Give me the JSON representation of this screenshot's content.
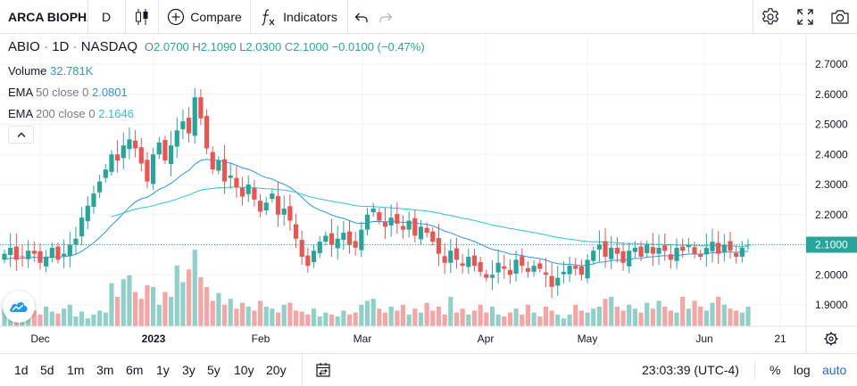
{
  "toolbar": {
    "symbol": "ARCA BIOPHARMA",
    "interval": "D",
    "compare_label": "Compare",
    "indicators_label": "Indicators"
  },
  "legend": {
    "symbol": "ABIO",
    "interval": "1D",
    "exchange": "NASDAQ",
    "open_key": "O",
    "open": "2.0700",
    "high_key": "H",
    "high": "2.1090",
    "low_key": "L",
    "low": "2.0300",
    "close_key": "C",
    "close": "2.1000",
    "change": "−0.0100 (−0.47%)"
  },
  "indicators": [
    {
      "name": "Volume",
      "params": "",
      "value": "32.781K",
      "color": "#26a69a"
    },
    {
      "name": "EMA",
      "params": "50 close 0",
      "value": "2.0801",
      "color": "#2196f3"
    },
    {
      "name": "EMA",
      "params": "200 close 0",
      "value": "2.1646",
      "color": "#26c6da"
    }
  ],
  "price_axis": {
    "ticks": [
      "2.7000",
      "2.6000",
      "2.5000",
      "2.4000",
      "2.3000",
      "2.2000",
      "2.1000",
      "2.0000",
      "1.9000"
    ],
    "last_price_label": "2.1000"
  },
  "time_axis": {
    "labels": [
      "Dec",
      "2023",
      "Feb",
      "Mar",
      "Apr",
      "May",
      "Jun",
      "21"
    ]
  },
  "colors": {
    "up": "#26a69a",
    "down": "#ef5350",
    "up_volume": "#8fd1c8",
    "down_volume": "#f5a6a4",
    "ema50": "#2196f3",
    "ema200": "#26c6da",
    "accent": "#2962ff"
  },
  "chart_data": {
    "type": "candlestick",
    "symbol": "ABIO",
    "interval": "1D",
    "ylim": [
      1.86,
      2.74
    ],
    "x_labels": [
      "Dec",
      "2023",
      "Feb",
      "Mar",
      "Apr",
      "May",
      "Jun",
      "21"
    ],
    "last_bar": {
      "open": 2.07,
      "high": 2.109,
      "low": 2.03,
      "close": 2.1,
      "volume": "32.781K"
    },
    "ema50_last": 2.0801,
    "ema200_last": 2.1646,
    "price_path": [
      2.07,
      2.09,
      2.05,
      2.06,
      2.08,
      2.07,
      2.04,
      2.06,
      2.09,
      2.05,
      2.07,
      2.1,
      2.12,
      2.19,
      2.23,
      2.27,
      2.31,
      2.35,
      2.4,
      2.38,
      2.43,
      2.45,
      2.42,
      2.37,
      2.31,
      2.4,
      2.44,
      2.38,
      2.43,
      2.48,
      2.51,
      2.47,
      2.59,
      2.52,
      2.42,
      2.35,
      2.38,
      2.31,
      2.33,
      2.29,
      2.26,
      2.3,
      2.25,
      2.21,
      2.24,
      2.27,
      2.2,
      2.22,
      2.18,
      2.12,
      2.06,
      2.03,
      2.08,
      2.11,
      2.13,
      2.1,
      2.12,
      2.14,
      2.1,
      2.09,
      2.15,
      2.2,
      2.22,
      2.18,
      2.16,
      2.19,
      2.17,
      2.15,
      2.18,
      2.13,
      2.16,
      2.14,
      2.11,
      2.07,
      2.04,
      2.08,
      2.05,
      2.03,
      2.06,
      2.03,
      2.01,
      1.99,
      2.0,
      2.04,
      2.02,
      2.0,
      2.05,
      2.03,
      2.01,
      2.03,
      2.02,
      2.0,
      1.96,
      1.99,
      2.01,
      2.03,
      2.02,
      2.0,
      2.05,
      2.08,
      2.1,
      2.06,
      2.09,
      2.07,
      2.04,
      2.08,
      2.09,
      2.06,
      2.1,
      2.07,
      2.09,
      2.08,
      2.05,
      2.09,
      2.08,
      2.1,
      2.07,
      2.06,
      2.09,
      2.11,
      2.07,
      2.1,
      2.08,
      2.06,
      2.09,
      2.1
    ],
    "volume_relative": [
      0.18,
      0.12,
      0.15,
      0.1,
      0.14,
      0.16,
      0.12,
      0.2,
      0.15,
      0.13,
      0.18,
      0.22,
      0.1,
      0.15,
      0.08,
      0.12,
      0.16,
      0.14,
      0.44,
      0.3,
      0.48,
      0.52,
      0.35,
      0.28,
      0.42,
      0.4,
      0.22,
      0.35,
      0.3,
      0.62,
      0.45,
      0.58,
      0.78,
      0.5,
      0.4,
      0.26,
      0.34,
      0.22,
      0.28,
      0.18,
      0.24,
      0.2,
      0.16,
      0.26,
      0.2,
      0.18,
      0.14,
      0.22,
      0.24,
      0.16,
      0.15,
      0.12,
      0.18,
      0.1,
      0.14,
      0.12,
      0.1,
      0.16,
      0.12,
      0.14,
      0.22,
      0.26,
      0.28,
      0.18,
      0.14,
      0.2,
      0.16,
      0.22,
      0.12,
      0.18,
      0.14,
      0.24,
      0.16,
      0.2,
      0.12,
      0.3,
      0.14,
      0.18,
      0.12,
      0.16,
      0.22,
      0.14,
      0.2,
      0.12,
      0.1,
      0.14,
      0.18,
      0.12,
      0.22,
      0.14,
      0.1,
      0.2,
      0.16,
      0.12,
      0.08,
      0.12,
      0.22,
      0.16,
      0.14,
      0.18,
      0.2,
      0.28,
      0.3,
      0.2,
      0.16,
      0.22,
      0.18,
      0.14,
      0.24,
      0.18,
      0.26,
      0.2,
      0.16,
      0.14,
      0.3,
      0.18,
      0.26,
      0.2,
      0.16,
      0.24,
      0.3,
      0.22,
      0.18,
      0.16,
      0.14,
      0.2
    ]
  },
  "bottombar": {
    "ranges": [
      "1d",
      "5d",
      "1m",
      "3m",
      "6m",
      "1y",
      "3y",
      "5y",
      "10y",
      "20y"
    ],
    "clock": "23:03:39 (UTC-4)",
    "percent_label": "%",
    "log_label": "log",
    "auto_label": "auto"
  }
}
